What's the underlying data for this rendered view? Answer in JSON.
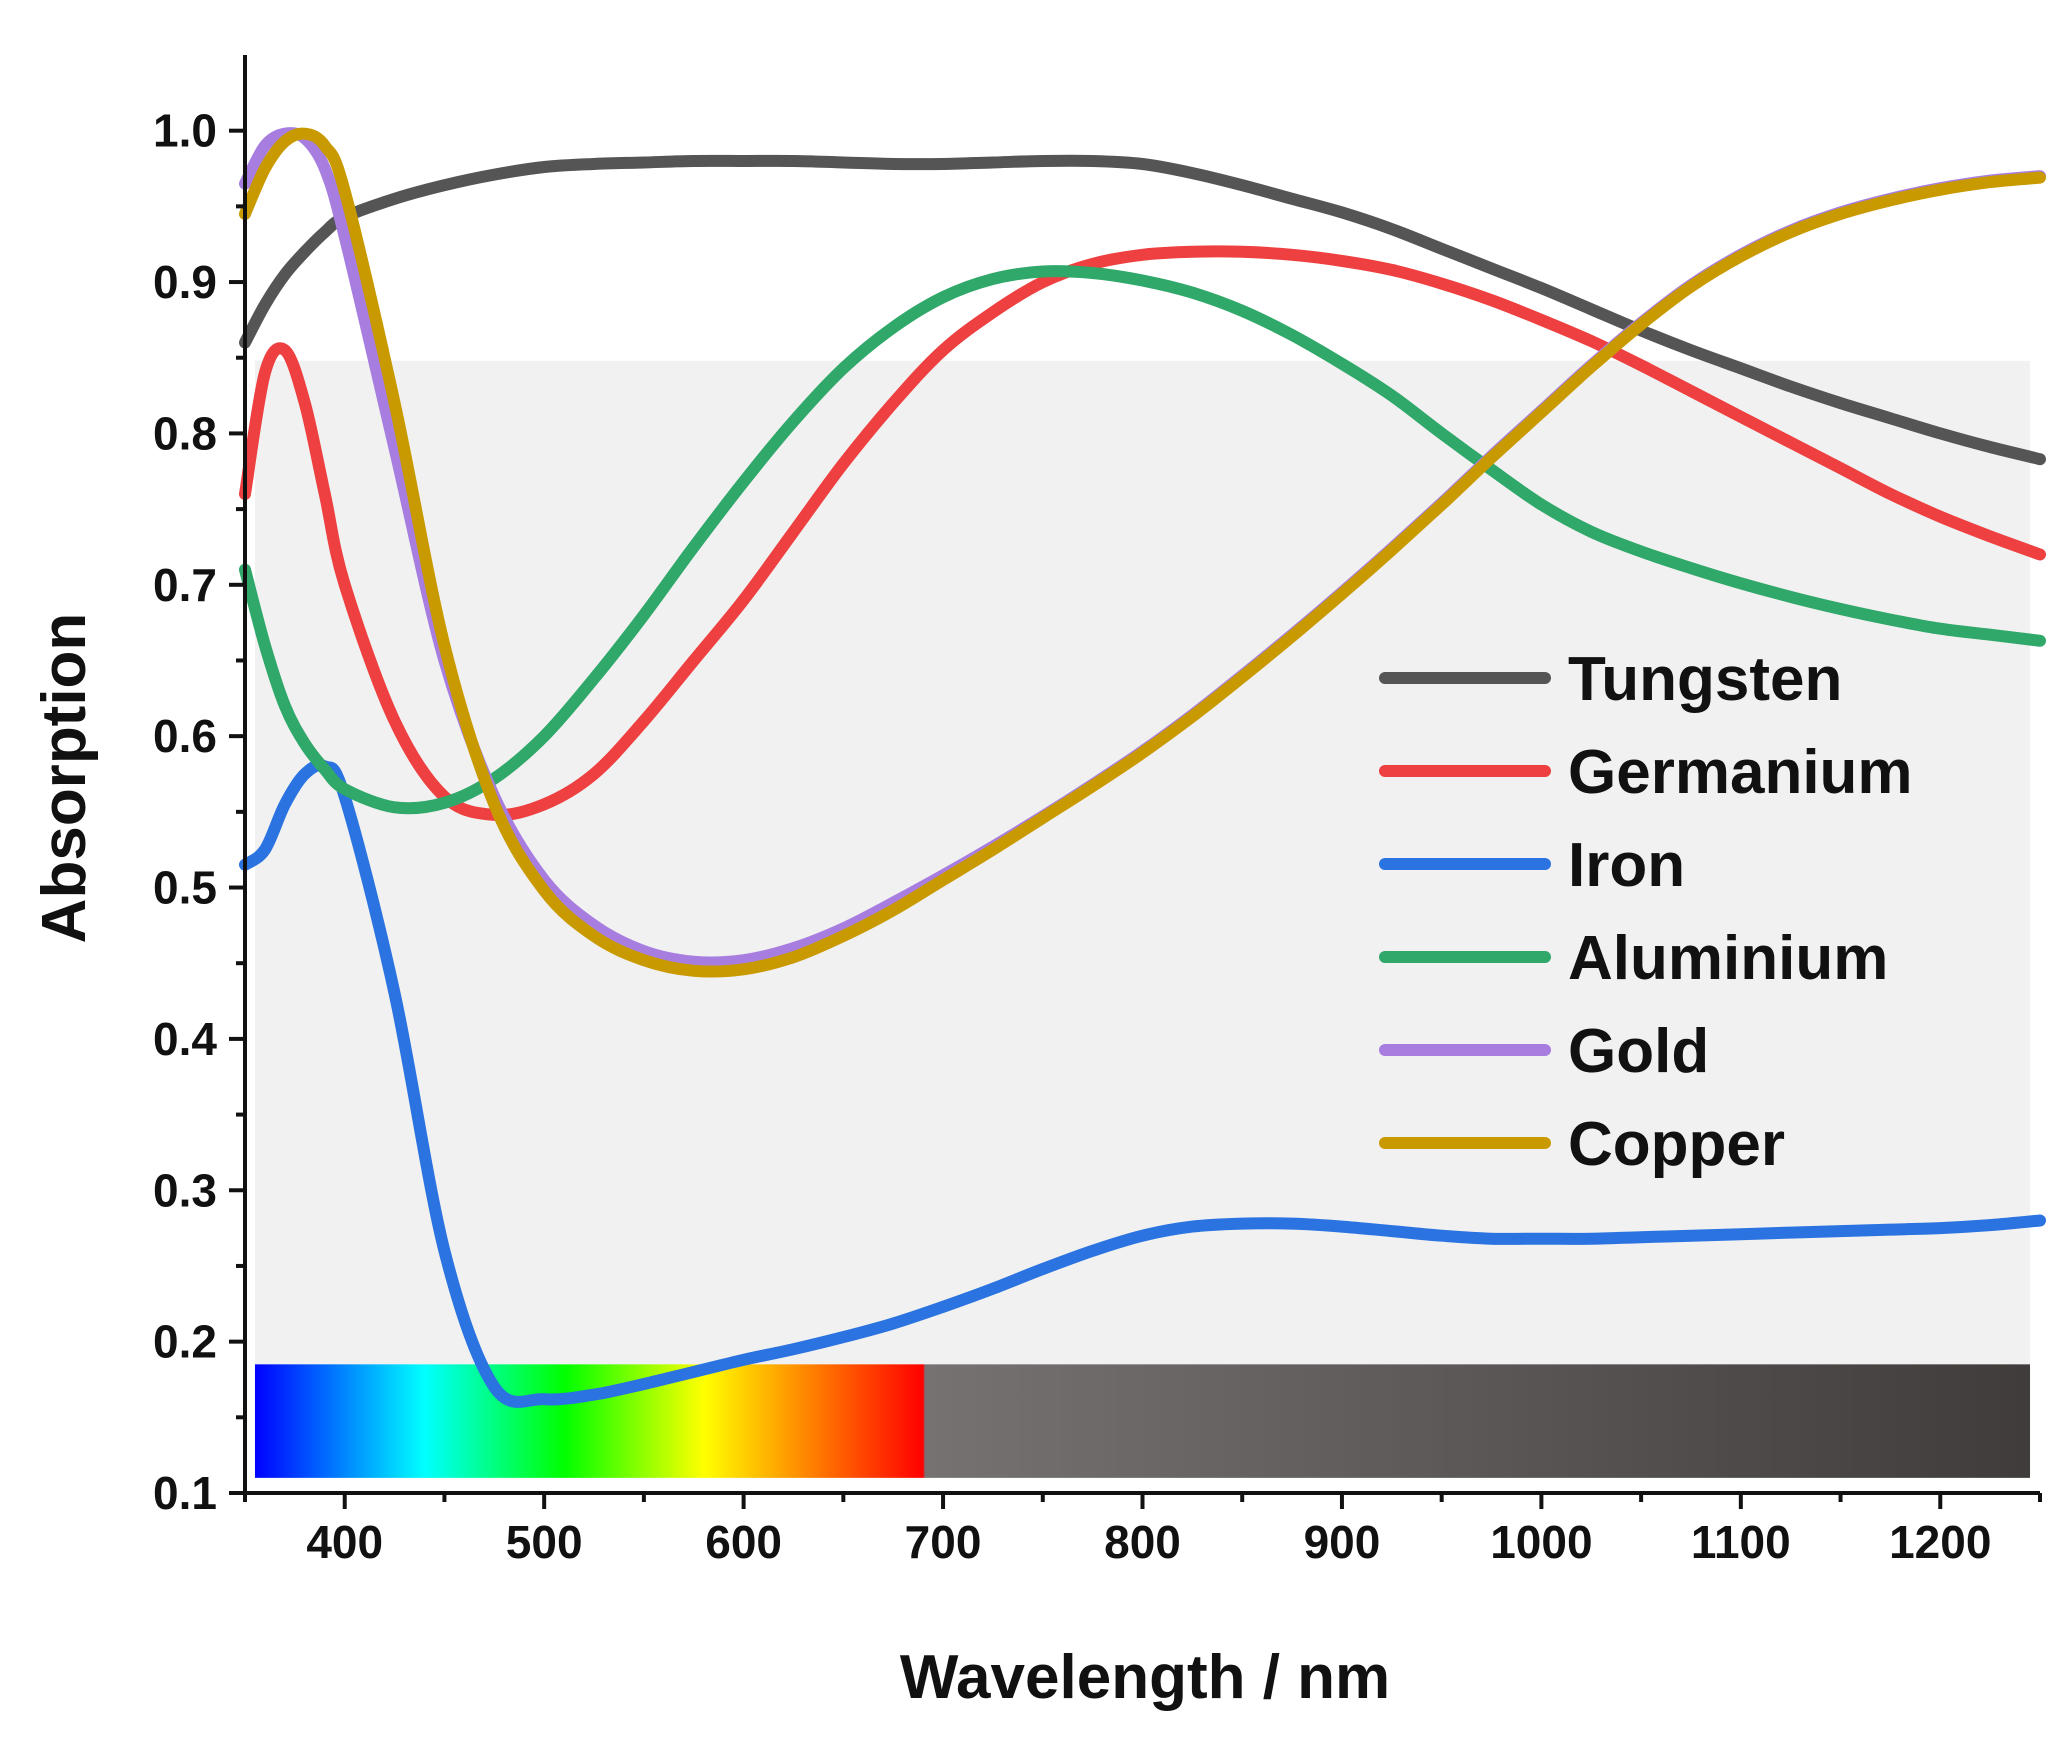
{
  "chart_data": {
    "type": "line",
    "title": "",
    "xlabel": "Wavelength / nm",
    "ylabel": "Absorption",
    "xlim": [
      350,
      1250
    ],
    "ylim": [
      0.1,
      1.05
    ],
    "x_ticks": [
      "400",
      "500",
      "600",
      "700",
      "800",
      "900",
      "1000",
      "1100",
      "1200"
    ],
    "y_ticks": [
      "0.1",
      "0.2",
      "0.3",
      "0.4",
      "0.5",
      "0.6",
      "0.7",
      "0.8",
      "0.9",
      "1.0"
    ],
    "grid": false,
    "legend_position": "right",
    "shaded_region": {
      "x": [
        355,
        1245
      ],
      "y": [
        0.185,
        0.848
      ],
      "color": "#f1f1f1"
    },
    "spectrum_bar": {
      "x": [
        355,
        1245
      ],
      "y": [
        0.11,
        0.185
      ],
      "visible_end": 690,
      "stops": [
        {
          "x": 355,
          "color": "#0000ff"
        },
        {
          "x": 440,
          "color": "#00ffff"
        },
        {
          "x": 510,
          "color": "#00ff00"
        },
        {
          "x": 580,
          "color": "#ffff00"
        },
        {
          "x": 645,
          "color": "#ff6600"
        },
        {
          "x": 690,
          "color": "#ff0000"
        },
        {
          "x": 691,
          "color": "#767272"
        },
        {
          "x": 1245,
          "color": "#403c3b"
        }
      ]
    },
    "x": [
      350,
      360,
      370,
      380,
      390,
      400,
      425,
      450,
      475,
      500,
      525,
      550,
      575,
      600,
      625,
      650,
      675,
      700,
      725,
      750,
      775,
      800,
      825,
      850,
      875,
      900,
      925,
      950,
      975,
      1000,
      1025,
      1050,
      1075,
      1100,
      1125,
      1150,
      1175,
      1200,
      1225,
      1250
    ],
    "series": [
      {
        "name": "Tungsten",
        "color": "#555555",
        "values": [
          0.86,
          0.885,
          0.905,
          0.92,
          0.933,
          0.943,
          0.955,
          0.964,
          0.971,
          0.976,
          0.978,
          0.979,
          0.98,
          0.98,
          0.98,
          0.979,
          0.978,
          0.978,
          0.979,
          0.98,
          0.98,
          0.978,
          0.972,
          0.964,
          0.955,
          0.946,
          0.935,
          0.922,
          0.909,
          0.896,
          0.882,
          0.868,
          0.855,
          0.843,
          0.831,
          0.82,
          0.81,
          0.8,
          0.791,
          0.783
        ]
      },
      {
        "name": "Germanium",
        "color": "#ee4040",
        "values": [
          0.76,
          0.84,
          0.855,
          0.82,
          0.76,
          0.7,
          0.61,
          0.56,
          0.548,
          0.555,
          0.575,
          0.61,
          0.65,
          0.69,
          0.735,
          0.78,
          0.82,
          0.855,
          0.88,
          0.9,
          0.912,
          0.918,
          0.92,
          0.92,
          0.918,
          0.914,
          0.908,
          0.899,
          0.888,
          0.875,
          0.861,
          0.845,
          0.828,
          0.811,
          0.794,
          0.777,
          0.76,
          0.745,
          0.732,
          0.72
        ]
      },
      {
        "name": "Iron",
        "color": "#2a73e0",
        "values": [
          0.515,
          0.525,
          0.555,
          0.575,
          0.58,
          0.56,
          0.43,
          0.26,
          0.17,
          0.162,
          0.165,
          0.172,
          0.18,
          0.188,
          0.195,
          0.203,
          0.212,
          0.223,
          0.235,
          0.248,
          0.26,
          0.27,
          0.276,
          0.278,
          0.278,
          0.276,
          0.273,
          0.27,
          0.268,
          0.268,
          0.268,
          0.269,
          0.27,
          0.271,
          0.272,
          0.273,
          0.274,
          0.275,
          0.277,
          0.28
        ]
      },
      {
        "name": "Aluminium",
        "color": "#2fa86a",
        "values": [
          0.71,
          0.66,
          0.62,
          0.595,
          0.578,
          0.565,
          0.553,
          0.556,
          0.572,
          0.6,
          0.638,
          0.68,
          0.725,
          0.768,
          0.808,
          0.843,
          0.87,
          0.89,
          0.902,
          0.907,
          0.906,
          0.901,
          0.893,
          0.881,
          0.865,
          0.846,
          0.825,
          0.8,
          0.776,
          0.753,
          0.735,
          0.722,
          0.711,
          0.701,
          0.692,
          0.684,
          0.677,
          0.671,
          0.667,
          0.663
        ]
      },
      {
        "name": "Gold",
        "color": "#a77ee0",
        "values": [
          0.965,
          0.99,
          0.998,
          0.995,
          0.975,
          0.93,
          0.79,
          0.65,
          0.56,
          0.505,
          0.475,
          0.458,
          0.451,
          0.452,
          0.46,
          0.473,
          0.49,
          0.508,
          0.527,
          0.547,
          0.568,
          0.59,
          0.614,
          0.64,
          0.667,
          0.695,
          0.724,
          0.754,
          0.785,
          0.815,
          0.845,
          0.873,
          0.898,
          0.918,
          0.934,
          0.946,
          0.955,
          0.962,
          0.967,
          0.97
        ]
      },
      {
        "name": "Copper",
        "color": "#c99a00",
        "values": [
          0.945,
          0.975,
          0.993,
          0.998,
          0.99,
          0.96,
          0.82,
          0.66,
          0.555,
          0.498,
          0.468,
          0.452,
          0.445,
          0.446,
          0.454,
          0.468,
          0.485,
          0.505,
          0.525,
          0.546,
          0.567,
          0.589,
          0.613,
          0.639,
          0.666,
          0.694,
          0.723,
          0.753,
          0.784,
          0.814,
          0.844,
          0.872,
          0.897,
          0.917,
          0.933,
          0.945,
          0.954,
          0.961,
          0.966,
          0.969
        ]
      }
    ]
  }
}
